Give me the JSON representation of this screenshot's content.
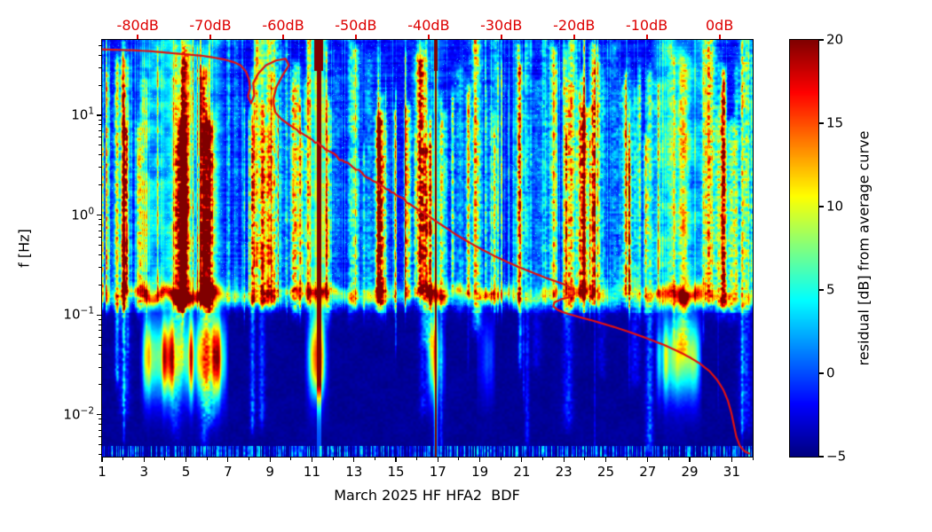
{
  "chart_data": {
    "type": "heatmap",
    "subtype": "spectrogram",
    "title": "",
    "xlabel": "March 2025 HF HFA2  BDF",
    "ylabel": "f [Hz]",
    "x_range": [
      1,
      32
    ],
    "x_ticks": [
      1,
      3,
      5,
      7,
      9,
      11,
      13,
      15,
      17,
      19,
      21,
      23,
      25,
      27,
      29,
      31
    ],
    "y_scale": "log",
    "y_tick_exponents": [
      1,
      0,
      -1,
      -2
    ],
    "y_range_log10": [
      -2.42,
      1.755
    ],
    "grid": false,
    "top_axis": {
      "color": "#dd0000",
      "ticks": [
        {
          "label": "-80dB",
          "day": 2.7
        },
        {
          "label": "-70dB",
          "day": 6.16
        },
        {
          "label": "-60dB",
          "day": 9.63
        },
        {
          "label": "-50dB",
          "day": 13.09
        },
        {
          "label": "-40dB",
          "day": 16.56
        },
        {
          "label": "-30dB",
          "day": 20.02
        },
        {
          "label": "-20dB",
          "day": 23.49
        },
        {
          "label": "-10dB",
          "day": 26.95
        },
        {
          "label": "0dB",
          "day": 30.42
        }
      ]
    },
    "colorbar": {
      "label": "residual [dB] from average curve",
      "ticks": [
        20,
        15,
        10,
        5,
        0,
        -5
      ],
      "range": [
        -5,
        20
      ],
      "colormap": "jet"
    },
    "overlay_curve": {
      "name": "average curve",
      "color": "#e01111",
      "points_day_log10f": [
        [
          1.0,
          1.66
        ],
        [
          1.8,
          1.655
        ],
        [
          2.6,
          1.65
        ],
        [
          3.4,
          1.64
        ],
        [
          4.2,
          1.625
        ],
        [
          5.0,
          1.61
        ],
        [
          5.8,
          1.595
        ],
        [
          6.4,
          1.575
        ],
        [
          6.9,
          1.555
        ],
        [
          7.3,
          1.53
        ],
        [
          7.6,
          1.5
        ],
        [
          7.85,
          1.44
        ],
        [
          8.0,
          1.36
        ],
        [
          8.05,
          1.27
        ],
        [
          7.95,
          1.19
        ],
        [
          8.1,
          1.12
        ],
        [
          8.25,
          1.2
        ],
        [
          8.2,
          1.32
        ],
        [
          8.45,
          1.42
        ],
        [
          8.8,
          1.5
        ],
        [
          9.3,
          1.55
        ],
        [
          9.75,
          1.565
        ],
        [
          9.9,
          1.5
        ],
        [
          9.6,
          1.4
        ],
        [
          9.3,
          1.28
        ],
        [
          9.15,
          1.15
        ],
        [
          9.25,
          1.03
        ],
        [
          9.55,
          0.96
        ],
        [
          9.95,
          0.9
        ],
        [
          10.4,
          0.84
        ],
        [
          10.9,
          0.77
        ],
        [
          11.4,
          0.7
        ],
        [
          11.9,
          0.63
        ],
        [
          12.3,
          0.565
        ],
        [
          12.7,
          0.515
        ],
        [
          13.1,
          0.455
        ],
        [
          13.5,
          0.4
        ],
        [
          13.9,
          0.345
        ],
        [
          14.4,
          0.285
        ],
        [
          14.9,
          0.215
        ],
        [
          15.4,
          0.15
        ],
        [
          15.9,
          0.075
        ],
        [
          16.4,
          0.01
        ],
        [
          16.9,
          -0.06
        ],
        [
          17.4,
          -0.13
        ],
        [
          17.9,
          -0.2
        ],
        [
          18.5,
          -0.275
        ],
        [
          19.1,
          -0.345
        ],
        [
          19.7,
          -0.41
        ],
        [
          20.3,
          -0.47
        ],
        [
          20.9,
          -0.525
        ],
        [
          21.5,
          -0.575
        ],
        [
          22.1,
          -0.625
        ],
        [
          22.7,
          -0.67
        ],
        [
          23.15,
          -0.705
        ],
        [
          23.45,
          -0.745
        ],
        [
          23.5,
          -0.79
        ],
        [
          23.25,
          -0.825
        ],
        [
          22.85,
          -0.845
        ],
        [
          22.55,
          -0.875
        ],
        [
          22.5,
          -0.915
        ],
        [
          22.75,
          -0.955
        ],
        [
          23.2,
          -0.99
        ],
        [
          23.8,
          -1.025
        ],
        [
          24.5,
          -1.065
        ],
        [
          25.3,
          -1.115
        ],
        [
          26.1,
          -1.17
        ],
        [
          26.9,
          -1.23
        ],
        [
          27.7,
          -1.295
        ],
        [
          28.4,
          -1.36
        ],
        [
          29.0,
          -1.425
        ],
        [
          29.5,
          -1.49
        ],
        [
          29.95,
          -1.565
        ],
        [
          30.3,
          -1.65
        ],
        [
          30.6,
          -1.75
        ],
        [
          30.82,
          -1.86
        ],
        [
          30.98,
          -1.98
        ],
        [
          31.1,
          -2.1
        ],
        [
          31.22,
          -2.22
        ],
        [
          31.38,
          -2.31
        ],
        [
          31.6,
          -2.365
        ],
        [
          31.85,
          -2.39
        ]
      ]
    },
    "features": {
      "band_log10f_center": -0.8,
      "red_stripes": [
        {
          "day": 11.31,
          "width": 0.11,
          "min_log10f": -1.55
        },
        {
          "day": 16.88,
          "width": 0.035,
          "min_log10f": -2.3
        }
      ],
      "low_freq_blobs": [
        {
          "day_start": 3.0,
          "day_end": 6.8,
          "peak_db": 20
        },
        {
          "day_start": 10.85,
          "day_end": 11.6,
          "peak_db": 13
        },
        {
          "day_start": 16.6,
          "day_end": 17.15,
          "peak_db": 16
        },
        {
          "day_start": 19.05,
          "day_end": 19.5,
          "peak_db": 10
        },
        {
          "day_start": 27.55,
          "day_end": 29.35,
          "peak_db": 20
        }
      ],
      "bright_day_ranges": [
        {
          "day_start": 2.8,
          "day_end": 6.7,
          "boost_db": 6
        },
        {
          "day_start": 8.2,
          "day_end": 9.1,
          "boost_db": 3
        },
        {
          "day_start": 10.8,
          "day_end": 11.7,
          "boost_db": 3
        },
        {
          "day_start": 16.5,
          "day_end": 17.2,
          "boost_db": 3
        },
        {
          "day_start": 27.3,
          "day_end": 29.6,
          "boost_db": 5
        }
      ]
    }
  }
}
